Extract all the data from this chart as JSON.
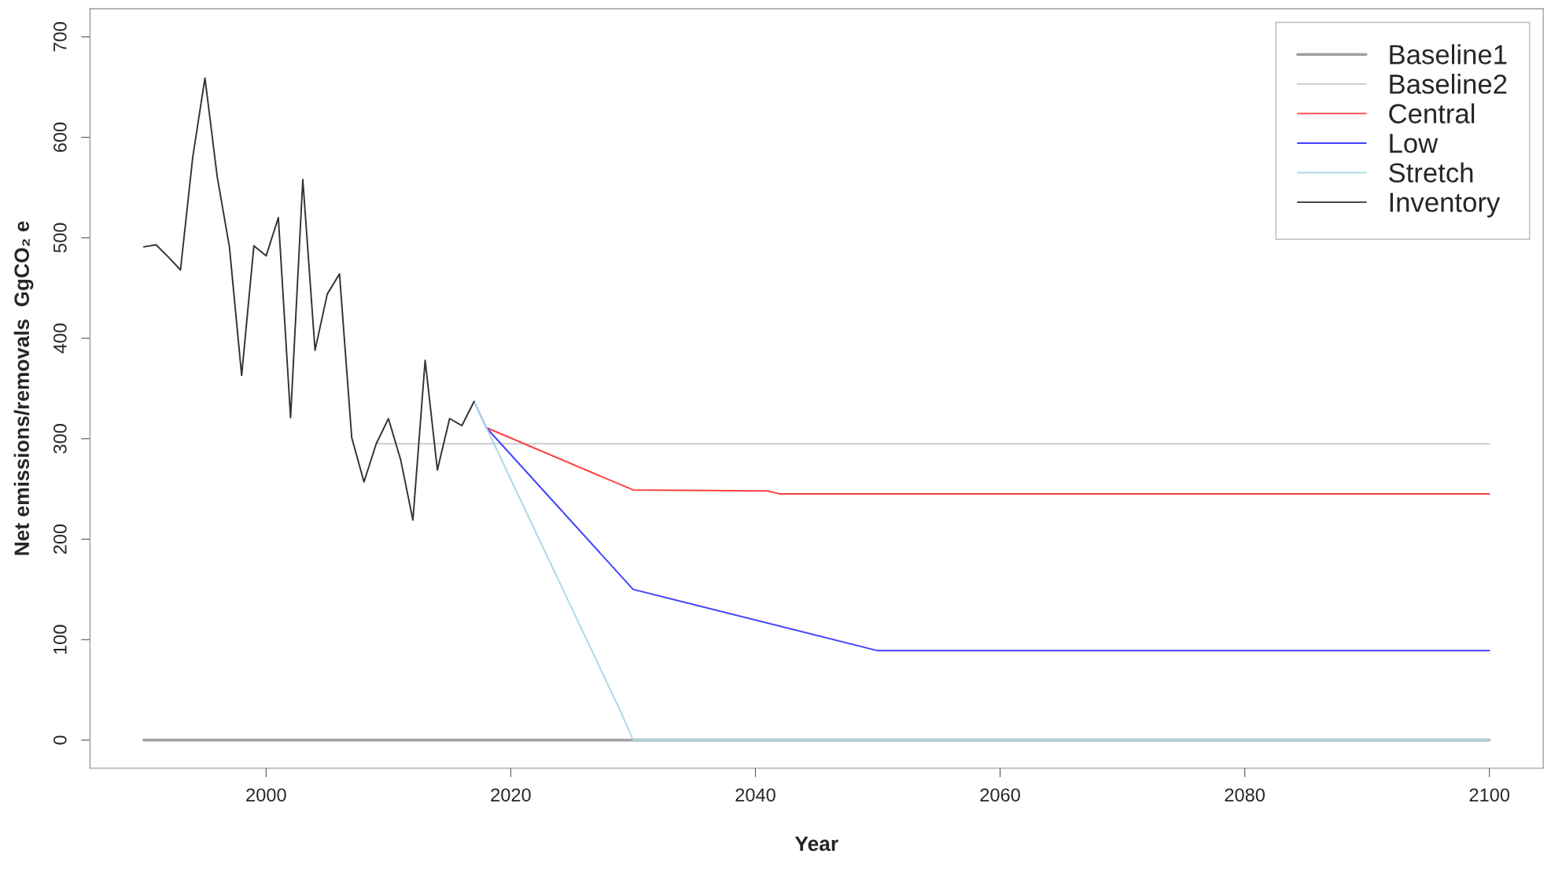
{
  "chart_data": {
    "type": "line",
    "xlabel": "Year",
    "ylabel": "Net emissions/removals  GgCO₂ e",
    "xlim": [
      1985.6,
      2104.4
    ],
    "ylim": [
      -28,
      728
    ],
    "xticks": [
      2000,
      2020,
      2040,
      2060,
      2080,
      2100
    ],
    "yticks": [
      0,
      100,
      200,
      300,
      400,
      500,
      600,
      700
    ],
    "grid": false,
    "legend": "top right",
    "marker": "none",
    "line_style": "solid",
    "series": [
      {
        "name": "Baseline1",
        "color": "#a0a0a0",
        "x": [
          1990,
          2100
        ],
        "values": [
          0,
          0
        ]
      },
      {
        "name": "Baseline2",
        "color": "#cccccc",
        "x": [
          2009,
          2100
        ],
        "values": [
          295,
          295
        ]
      },
      {
        "name": "Central",
        "color": "#ff4040",
        "x": [
          2018,
          2030,
          2041,
          2042,
          2100
        ],
        "values": [
          311,
          249,
          248,
          245,
          245
        ]
      },
      {
        "name": "Low",
        "color": "#4040ff",
        "x": [
          2017,
          2018,
          2030,
          2050,
          2100
        ],
        "values": [
          337,
          311,
          150,
          89,
          89
        ]
      },
      {
        "name": "Stretch",
        "color": "#add8e6",
        "x": [
          2017,
          2018,
          2029,
          2030,
          2100
        ],
        "values": [
          337,
          311,
          28,
          0,
          0
        ]
      },
      {
        "name": "Inventory",
        "color": "#333333",
        "x": [
          1990,
          1991,
          1992,
          1993,
          1994,
          1995,
          1996,
          1997,
          1998,
          1999,
          2000,
          2001,
          2002,
          2003,
          2004,
          2005,
          2006,
          2007,
          2008,
          2009,
          2010,
          2011,
          2012,
          2013,
          2014,
          2015,
          2016,
          2017
        ],
        "values": [
          491,
          493,
          481,
          468,
          580,
          659,
          561,
          491,
          363,
          492,
          482,
          520,
          321,
          558,
          388,
          444,
          464,
          301,
          257,
          295,
          320,
          279,
          219,
          378,
          269,
          320,
          313,
          337
        ]
      }
    ]
  }
}
